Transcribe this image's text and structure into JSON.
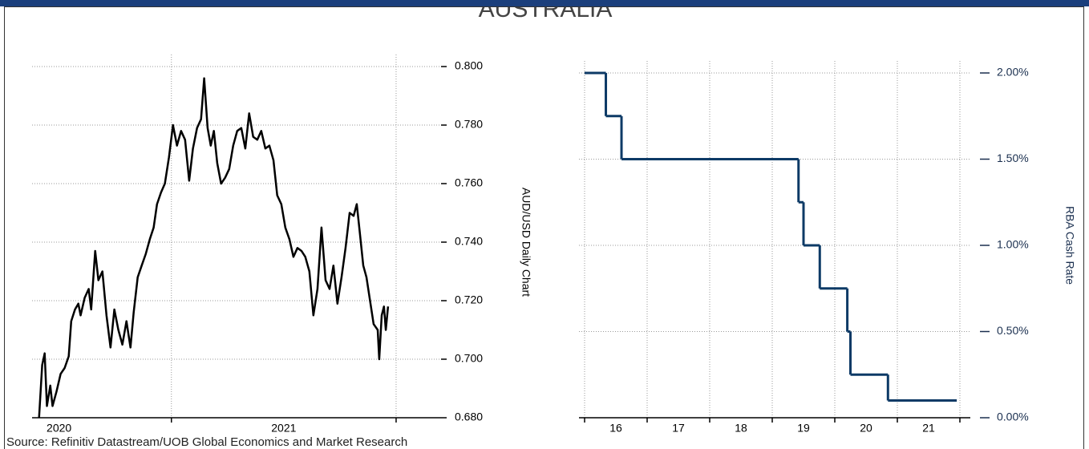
{
  "title": "AUSTRALIA",
  "source": "Source: Refinitiv Datastream/UOB Global Economics and Market Research",
  "chart_data": [
    {
      "type": "line",
      "y_label": "AUD/USD Daily Chart",
      "color": "#000000",
      "x": [
        2020.411,
        2020.425,
        2020.436,
        2020.446,
        2020.461,
        2020.471,
        2020.489,
        2020.507,
        2020.525,
        2020.543,
        2020.554,
        2020.571,
        2020.586,
        2020.596,
        2020.614,
        2020.632,
        2020.643,
        2020.661,
        2020.675,
        2020.693,
        2020.711,
        2020.729,
        2020.746,
        2020.764,
        2020.782,
        2020.8,
        2020.818,
        2020.832,
        2020.85,
        2020.868,
        2020.886,
        2020.904,
        2020.921,
        2020.936,
        2020.954,
        2020.971,
        2020.989,
        2021.007,
        2021.025,
        2021.043,
        2021.061,
        2021.079,
        2021.096,
        2021.114,
        2021.132,
        2021.146,
        2021.161,
        2021.175,
        2021.189,
        2021.204,
        2021.221,
        2021.239,
        2021.257,
        2021.275,
        2021.293,
        2021.311,
        2021.329,
        2021.346,
        2021.364,
        2021.382,
        2021.4,
        2021.418,
        2021.436,
        2021.454,
        2021.471,
        2021.489,
        2021.507,
        2021.525,
        2021.543,
        2021.561,
        2021.579,
        2021.596,
        2021.614,
        2021.632,
        2021.65,
        2021.668,
        2021.686,
        2021.704,
        2021.721,
        2021.739,
        2021.757,
        2021.775,
        2021.793,
        2021.811,
        2021.825,
        2021.839,
        2021.854,
        2021.868,
        2021.882,
        2021.9,
        2021.918,
        2021.925,
        2021.936,
        2021.946,
        2021.954,
        2021.964
      ],
      "values": [
        0.68,
        0.698,
        0.702,
        0.684,
        0.691,
        0.684,
        0.689,
        0.695,
        0.697,
        0.701,
        0.713,
        0.717,
        0.719,
        0.715,
        0.721,
        0.724,
        0.717,
        0.737,
        0.727,
        0.73,
        0.715,
        0.704,
        0.717,
        0.71,
        0.705,
        0.713,
        0.704,
        0.716,
        0.728,
        0.732,
        0.736,
        0.741,
        0.745,
        0.753,
        0.757,
        0.76,
        0.769,
        0.78,
        0.773,
        0.778,
        0.775,
        0.761,
        0.772,
        0.779,
        0.782,
        0.796,
        0.779,
        0.773,
        0.778,
        0.767,
        0.76,
        0.762,
        0.765,
        0.773,
        0.778,
        0.779,
        0.772,
        0.784,
        0.776,
        0.775,
        0.778,
        0.772,
        0.773,
        0.768,
        0.756,
        0.753,
        0.745,
        0.741,
        0.735,
        0.738,
        0.737,
        0.735,
        0.73,
        0.715,
        0.724,
        0.745,
        0.727,
        0.724,
        0.732,
        0.719,
        0.728,
        0.738,
        0.75,
        0.749,
        0.753,
        0.743,
        0.732,
        0.728,
        0.721,
        0.712,
        0.71,
        0.7,
        0.715,
        0.718,
        0.71,
        0.718
      ],
      "xlim": [
        2020.38,
        2022.2
      ],
      "xticks": [
        {
          "value": 2020.5,
          "label": "2020"
        },
        {
          "value": 2021.5,
          "label": "2021"
        }
      ],
      "xgrid": [
        2021,
        2022
      ],
      "ylim": [
        0.68,
        0.8
      ],
      "yticks": [
        {
          "value": 0.68,
          "label": "0.680"
        },
        {
          "value": 0.7,
          "label": "0.700"
        },
        {
          "value": 0.72,
          "label": "0.720"
        },
        {
          "value": 0.74,
          "label": "0.740"
        },
        {
          "value": 0.76,
          "label": "0.760"
        },
        {
          "value": 0.78,
          "label": "0.780"
        },
        {
          "value": 0.8,
          "label": "0.800"
        }
      ],
      "grid": true
    },
    {
      "type": "step",
      "y_label": "RBA Cash Rate",
      "color": "#0d3a66",
      "x": [
        2016.0,
        2016.34,
        2016.59,
        2019.42,
        2019.5,
        2019.76,
        2020.2,
        2020.25,
        2020.85,
        2021.95
      ],
      "values": [
        2.0,
        1.75,
        1.5,
        1.25,
        1.0,
        0.75,
        0.5,
        0.25,
        0.1,
        0.1
      ],
      "xlim": [
        2016,
        2022
      ],
      "xticks": [
        {
          "value": 2016.5,
          "label": "16"
        },
        {
          "value": 2017.5,
          "label": "17"
        },
        {
          "value": 2018.5,
          "label": "18"
        },
        {
          "value": 2019.5,
          "label": "19"
        },
        {
          "value": 2020.5,
          "label": "20"
        },
        {
          "value": 2021.5,
          "label": "21"
        }
      ],
      "xgrid": [
        2016,
        2017,
        2018,
        2019,
        2020,
        2021,
        2022
      ],
      "ylim": [
        0,
        2
      ],
      "yticks": [
        {
          "value": 0,
          "label": "0.00%"
        },
        {
          "value": 0.5,
          "label": "0.50%"
        },
        {
          "value": 1,
          "label": "1.00%"
        },
        {
          "value": 1.5,
          "label": "1.50%"
        },
        {
          "value": 2,
          "label": "2.00%"
        }
      ],
      "grid": true
    }
  ]
}
